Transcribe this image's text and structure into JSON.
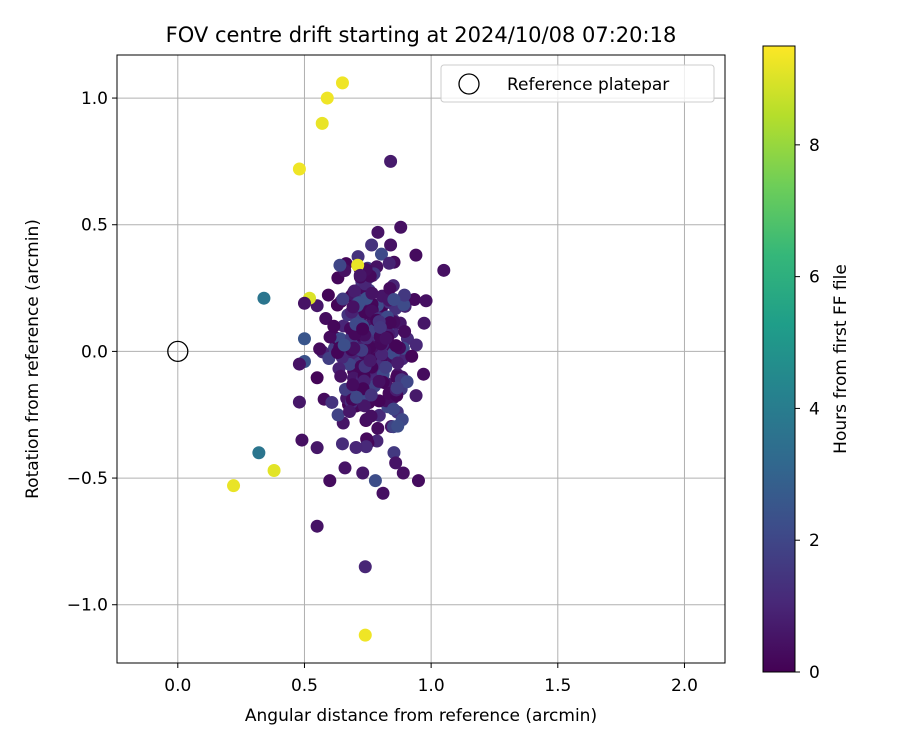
{
  "chart_data": {
    "type": "scatter",
    "title": "FOV centre drift starting at 2024/10/08 07:20:18",
    "xlabel": "Angular distance from reference (arcmin)",
    "ylabel": "Rotation from reference (arcmin)",
    "xlim": [
      -0.24,
      2.16
    ],
    "ylim": [
      -1.23,
      1.17
    ],
    "xticks": [
      0.0,
      0.5,
      1.0,
      1.5,
      2.0
    ],
    "xtick_labels": [
      "0.0",
      "0.5",
      "1.0",
      "1.5",
      "2.0"
    ],
    "yticks": [
      -1.0,
      -0.5,
      0.0,
      0.5,
      1.0
    ],
    "ytick_labels": [
      "−1.0",
      "−0.5",
      "0.0",
      "0.5",
      "1.0"
    ],
    "grid": true,
    "legend": {
      "placement": "top-right",
      "entries": [
        "Reference platepar"
      ]
    },
    "reference_point": {
      "x": 0.0,
      "y": 0.0
    },
    "colorbar": {
      "label": "Hours from first FF file",
      "colormap": "viridis",
      "range": [
        0,
        9.5
      ],
      "ticks": [
        0,
        2,
        4,
        6,
        8
      ],
      "tick_labels": [
        "0",
        "2",
        "4",
        "6",
        "8"
      ]
    },
    "points": [
      {
        "x": 0.65,
        "y": 1.06,
        "c": 9.3
      },
      {
        "x": 0.59,
        "y": 1.0,
        "c": 9.3
      },
      {
        "x": 0.57,
        "y": 0.9,
        "c": 9.2
      },
      {
        "x": 0.48,
        "y": 0.72,
        "c": 9.3
      },
      {
        "x": 0.71,
        "y": 0.34,
        "c": 9.2
      },
      {
        "x": 0.52,
        "y": 0.21,
        "c": 9.0
      },
      {
        "x": 0.22,
        "y": -0.53,
        "c": 9.2
      },
      {
        "x": 0.38,
        "y": -0.47,
        "c": 9.1
      },
      {
        "x": 0.74,
        "y": -1.12,
        "c": 9.3
      },
      {
        "x": 0.34,
        "y": 0.21,
        "c": 3.7
      },
      {
        "x": 0.32,
        "y": -0.4,
        "c": 3.7
      },
      {
        "x": 0.5,
        "y": 0.05,
        "c": 2.5
      },
      {
        "x": 0.5,
        "y": -0.04,
        "c": 2.4
      },
      {
        "x": 0.78,
        "y": -0.51,
        "c": 2.2
      },
      {
        "x": 0.84,
        "y": 0.75,
        "c": 0.7
      },
      {
        "x": 0.74,
        "y": -0.85,
        "c": 1.0
      },
      {
        "x": 0.55,
        "y": -0.69,
        "c": 0.5
      },
      {
        "x": 1.05,
        "y": 0.32,
        "c": 0.4
      },
      {
        "x": 0.88,
        "y": 0.49,
        "c": 0.4
      },
      {
        "x": 0.79,
        "y": 0.47,
        "c": 0.5
      },
      {
        "x": 0.84,
        "y": 0.42,
        "c": 0.5
      },
      {
        "x": 0.94,
        "y": 0.38,
        "c": 0.3
      },
      {
        "x": 0.72,
        "y": 0.3,
        "c": 0.6
      },
      {
        "x": 0.64,
        "y": 0.34,
        "c": 2.0
      },
      {
        "x": 0.98,
        "y": 0.2,
        "c": 0.4
      },
      {
        "x": 0.6,
        "y": -0.51,
        "c": 0.3
      },
      {
        "x": 0.81,
        "y": -0.56,
        "c": 0.4
      },
      {
        "x": 0.95,
        "y": -0.51,
        "c": 0.3
      },
      {
        "x": 0.89,
        "y": -0.48,
        "c": 0.4
      },
      {
        "x": 0.86,
        "y": -0.44,
        "c": 0.5
      },
      {
        "x": 0.49,
        "y": -0.35,
        "c": 0.4
      },
      {
        "x": 0.48,
        "y": -0.2,
        "c": 0.6
      },
      {
        "x": 0.48,
        "y": -0.05,
        "c": 0.5
      },
      {
        "x": 0.5,
        "y": 0.19,
        "c": 0.5
      },
      {
        "x": 0.97,
        "y": -0.09,
        "c": 0.3
      },
      {
        "x": 0.66,
        "y": -0.46,
        "c": 0.5
      },
      {
        "x": 0.73,
        "y": -0.48,
        "c": 0.6
      },
      {
        "x": 0.55,
        "y": -0.38,
        "c": 0.6
      }
    ],
    "cluster": {
      "x_range": [
        0.55,
        0.98
      ],
      "y_range": [
        -0.42,
        0.42
      ],
      "count": 260,
      "hours_range": [
        0.1,
        2.3
      ]
    }
  }
}
